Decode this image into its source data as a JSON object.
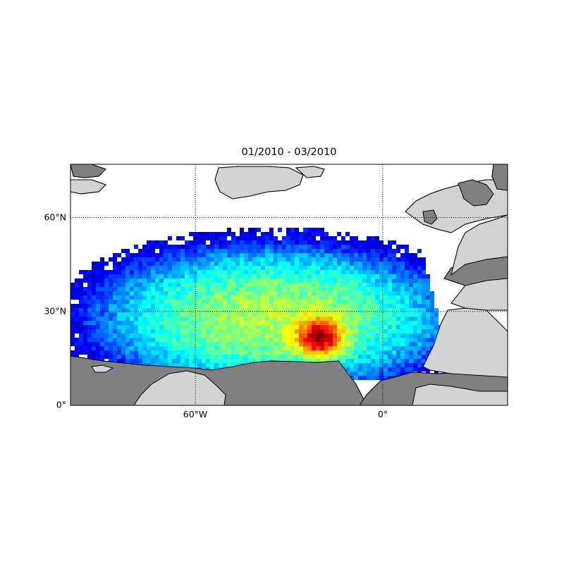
{
  "title": "01/2010 - 03/2010",
  "map": {
    "type": "heatmap",
    "extent": {
      "lon": [
        -100,
        40
      ],
      "lat": [
        0,
        77
      ]
    },
    "colormap": "jet",
    "land_color": "#d3d3d3",
    "masked_color": "#808080",
    "lat_ticks": [
      {
        "value": 60,
        "label": "60°N"
      },
      {
        "value": 30,
        "label": "30°N"
      },
      {
        "value": 0,
        "label": "0°"
      }
    ],
    "lon_ticks": [
      {
        "value": -60,
        "label": "60°W"
      },
      {
        "value": 0,
        "label": "0°"
      }
    ],
    "peak_region": {
      "lon": [
        -28,
        -12
      ],
      "lat": [
        15,
        28
      ]
    }
  }
}
